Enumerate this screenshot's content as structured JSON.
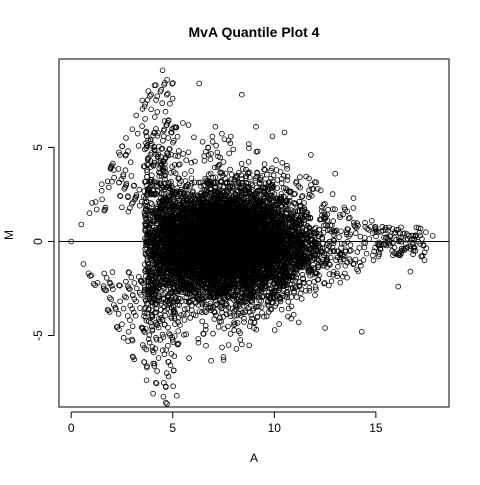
{
  "chart_data": {
    "type": "scatter",
    "title": "MvA Quantile Plot 4",
    "xlabel": "A",
    "ylabel": "M",
    "xlim": [
      -0.6,
      18.6
    ],
    "ylim": [
      -8.8,
      9.7
    ],
    "xticks": [
      0,
      5,
      10,
      15
    ],
    "xtick_labels": [
      "0",
      "5",
      "10",
      "15"
    ],
    "yticks": [
      -5,
      0,
      5
    ],
    "ytick_labels": [
      "-5",
      "0",
      "5"
    ],
    "reference_line": {
      "y": 0
    },
    "grid": false,
    "legend": "none",
    "marker": "open-circle",
    "marker_color": "#000000",
    "approximate_points_drawn": 9000,
    "points": [
      [
        0.0,
        0.0
      ],
      [
        0.5,
        0.9
      ],
      [
        0.6,
        -1.2
      ],
      [
        0.9,
        1.5
      ],
      [
        1.0,
        -1.8
      ],
      [
        1.2,
        2.1
      ],
      [
        1.3,
        -2.2
      ],
      [
        1.5,
        2.7
      ],
      [
        1.6,
        -2.5
      ],
      [
        1.8,
        3.2
      ],
      [
        1.9,
        -3.0
      ],
      [
        2.1,
        3.8
      ],
      [
        2.2,
        -3.6
      ],
      [
        2.4,
        4.6
      ],
      [
        2.5,
        -4.4
      ],
      [
        2.7,
        5.5
      ],
      [
        2.8,
        -5.3
      ],
      [
        3.2,
        6.7
      ],
      [
        3.5,
        7.5
      ],
      [
        3.8,
        8.0
      ],
      [
        4.1,
        8.3
      ],
      [
        4.5,
        9.1
      ],
      [
        4.1,
        -6.5
      ],
      [
        4.7,
        -7.0
      ],
      [
        5.2,
        -8.2
      ],
      [
        5.8,
        -6.2
      ],
      [
        6.3,
        8.4
      ],
      [
        7.5,
        -6.3
      ],
      [
        8.4,
        7.8
      ],
      [
        12.5,
        -4.6
      ],
      [
        14.3,
        -4.8
      ],
      [
        16.1,
        -2.4
      ],
      [
        16.7,
        -1.6
      ],
      [
        17.4,
        -1.0
      ],
      [
        17.8,
        0.3
      ],
      [
        16.0,
        0.1
      ],
      [
        15.4,
        0.2
      ],
      [
        14.8,
        1.1
      ],
      [
        13.9,
        2.3
      ],
      [
        13.0,
        3.6
      ],
      [
        11.8,
        4.6
      ],
      [
        10.5,
        5.8
      ],
      [
        9.1,
        6.1
      ],
      [
        7.1,
        6.1
      ],
      [
        5.5,
        6.3
      ],
      [
        4.6,
        6.4
      ],
      [
        4.8,
        -6.4
      ],
      [
        6.5,
        -4.9
      ],
      [
        9.0,
        -4.6
      ],
      [
        11.2,
        -4.3
      ]
    ]
  }
}
